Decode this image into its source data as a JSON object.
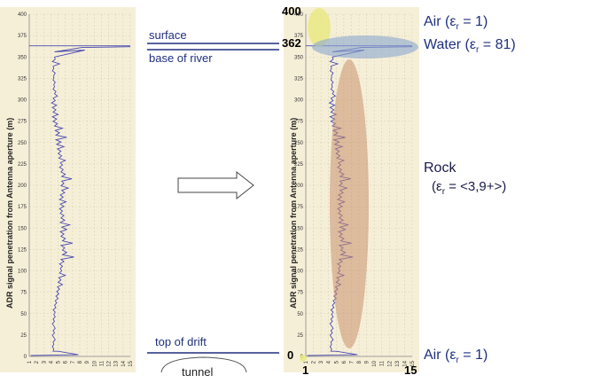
{
  "chart_data": [
    {
      "type": "line",
      "ylabel": "ADR signal penetration from Antenna aperture (m)",
      "ylim": [
        0,
        400
      ],
      "xlim": [
        1,
        15
      ],
      "yticks": [
        0,
        25,
        50,
        75,
        100,
        125,
        150,
        175,
        200,
        225,
        250,
        275,
        300,
        325,
        350,
        375,
        400
      ],
      "xticks": [
        1,
        2,
        3,
        4,
        5,
        6,
        7,
        8,
        9,
        10,
        11,
        12,
        13,
        14,
        15
      ],
      "series": [
        {
          "x": [
            4.3,
            4.4,
            4.2,
            4.4,
            4.3,
            4.6,
            4.4,
            4.2,
            4.5,
            4.3,
            4.6,
            4.4,
            4.2,
            4.5,
            4.3,
            4.6,
            4.4,
            4.6,
            4.3,
            4.7,
            4.5,
            4.8,
            4.6,
            5.0,
            4.7,
            5.1,
            4.8,
            5.2,
            4.9,
            5.6,
            5.0,
            5.4,
            5.1,
            6.0,
            5.2,
            5.5,
            5.3,
            5.6,
            5.2,
            5.8,
            5.4,
            7.2,
            5.6,
            6.2,
            5.6,
            5.9,
            5.4,
            7.0,
            5.6,
            6.0,
            5.4,
            5.8,
            5.3,
            6.2,
            5.5,
            6.6,
            5.3,
            5.9,
            5.4,
            5.8,
            5.3,
            5.6,
            5.2,
            5.8,
            5.3,
            6.1,
            5.2,
            5.7,
            5.3,
            5.9,
            5.5,
            6.4,
            5.4,
            5.8,
            5.5,
            6.9,
            5.5,
            6.0,
            5.4,
            5.7,
            5.2,
            5.6,
            5.3,
            6.0,
            5.1,
            5.5,
            5.0,
            5.4,
            4.9,
            5.8,
            4.8,
            5.4,
            4.7,
            6.2,
            4.7,
            5.2,
            4.6,
            5.6,
            4.5,
            4.9,
            4.3,
            4.8,
            4.2,
            5.0,
            4.3,
            4.7,
            4.2,
            4.8,
            4.1,
            4.6,
            4.3,
            4.9,
            4.5,
            4.7,
            4.3,
            4.5,
            4.4,
            4.6,
            4.3,
            4.4,
            4.4,
            4.6,
            4.2,
            4.4,
            4.3,
            5.2,
            4.2,
            4.6,
            4.5
          ],
          "y": [
            0,
            1,
            3,
            4,
            5,
            7,
            8,
            10,
            12,
            13,
            15,
            17,
            18,
            20,
            22,
            23,
            25,
            27,
            28,
            30,
            32,
            33,
            35,
            37,
            38,
            40,
            42,
            43,
            45,
            47,
            48,
            50,
            52,
            53,
            55,
            57,
            58,
            60,
            62,
            63,
            65,
            67,
            68,
            70,
            72,
            73,
            75,
            77,
            78,
            80,
            82,
            83,
            85,
            87,
            88,
            90,
            92,
            93,
            95,
            97,
            98,
            100,
            102,
            103,
            105,
            107,
            108,
            110,
            112,
            113,
            115,
            117,
            118,
            120,
            122,
            123,
            125,
            127,
            128,
            130,
            132,
            133,
            135,
            137,
            138,
            140,
            142,
            143,
            145,
            147,
            148,
            150,
            152,
            153,
            155,
            157,
            158,
            160,
            162,
            163,
            165,
            167,
            168,
            170,
            172,
            173,
            175,
            177,
            178,
            180,
            182,
            183,
            185,
            187,
            188,
            190,
            192,
            193,
            195,
            197,
            198,
            200,
            202,
            203,
            205,
            207,
            208,
            210,
            212
          ]
        }
      ],
      "note_spike_at": [
        8.5,
        360
      ],
      "note_surface_y": 362
    }
  ],
  "labels": {
    "surface": "surface",
    "base_of_river": "base of river",
    "top_of_drift": "top of drift",
    "tunnel": "tunnel",
    "val_400": "400",
    "val_362": "362",
    "val_0": "0",
    "val_1": "1",
    "val_15": "15",
    "air_top": "Air (ε",
    "air_top_sub": "r",
    "air_top_end": " = 1)",
    "water": "Water (ε",
    "water_sub": "r",
    "water_end": " = 81)",
    "rock": "Rock",
    "rock_eps": "(ε",
    "rock_eps_sub": "r",
    "rock_eps_end": " = <3,9+>)",
    "air_bottom": "Air (ε",
    "air_bottom_sub": "r",
    "air_bottom_end": " = 1)"
  },
  "colors": {
    "panel_bg": "#f6efd8",
    "trace": "#4a4ab0",
    "grid": "#d9d2b8",
    "divider": "#1f2f7f",
    "air_ellipse": "#e8e87a",
    "water_ellipse": "#8aa6cf",
    "rock_ellipse": "#c98f6e"
  }
}
